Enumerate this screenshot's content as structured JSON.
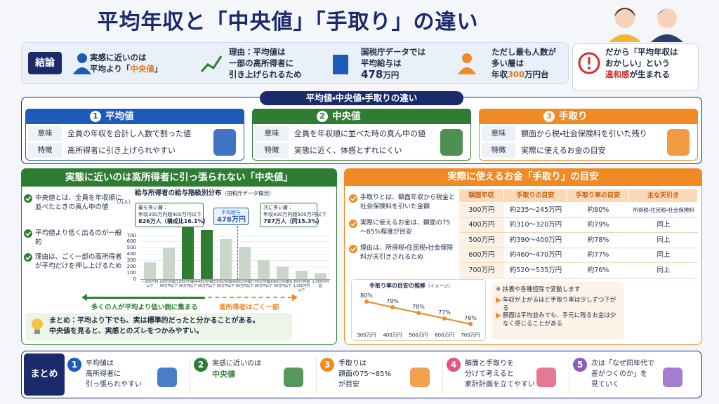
{
  "header": {
    "title": "平均年収と「中央値」「手取り」の違い"
  },
  "conclusion": {
    "label": "結論",
    "items": [
      {
        "lines": [
          [
            "実感に近いのは"
          ],
          [
            "平均より「",
            {
              "text": "中央値",
              "color": "#e8751a"
            },
            "」"
          ]
        ]
      },
      {
        "lines": [
          [
            "理由：平均値は"
          ],
          [
            "一部の高所得者に"
          ],
          [
            "引き上げられるため"
          ]
        ]
      },
      {
        "lines": [
          [
            "国税庁データでは"
          ],
          [
            "平均給与は"
          ],
          [
            {
              "text": "478",
              "color": "#1b2a6b"
            },
            "万円"
          ]
        ]
      },
      {
        "lines": [
          [
            "ただし最も人数が"
          ],
          [
            "多い層は"
          ],
          [
            "年収",
            {
              "text": "300",
              "color": "#e8751a"
            },
            "万円台"
          ]
        ]
      },
      {
        "lines": [
          [
            "だから「平均年収は"
          ],
          [
            "おかしい」という"
          ],
          [
            {
              "text": "違和感",
              "color": "#d32f2f"
            },
            "が生まれる"
          ]
        ]
      }
    ]
  },
  "differences": {
    "title": "平均値・中央値・手取りの違い",
    "cards": [
      {
        "num": "1",
        "name": "平均値",
        "color": "#1e5bb8",
        "rows": [
          [
            "意味",
            "全員の年収を合計し人数で割った値"
          ],
          [
            "特徴",
            "高所得者に引き上げられやすい"
          ]
        ]
      },
      {
        "num": "2",
        "name": "中央値",
        "color": "#2e7d32",
        "rows": [
          [
            "意味",
            "全員を年収順に並べた時の真ん中の値"
          ],
          [
            "特徴",
            "実態に近く、体感とずれにくい"
          ]
        ]
      },
      {
        "num": "3",
        "name": "手取り",
        "color": "#f08a24",
        "rows": [
          [
            "意味",
            "額面から税・社会保険料を引いた残り"
          ],
          [
            "特徴",
            "実際に使えるお金の目安"
          ]
        ]
      }
    ]
  },
  "median": {
    "title": "実態に近いのは高所得者に引っ張られない「中央値」",
    "points": [
      "中央値とは、全員を年収順に並べたときの真ん中の値",
      "平均値より低く出るのが一般的",
      "理由は、ごく一部の高所得者が平均だけを押し上げるため"
    ],
    "arrows": [
      {
        "text": "多くの人が平均より低い側に集まる",
        "color": "#2e7d32"
      },
      {
        "text": "高所得者はごく一部",
        "color": "#f08a24"
      }
    ],
    "note": [
      "まとめ：平均より下でも、実は標準的だったと分かることがある。",
      "中央値を見ると、実感とのズレをつかみやすい。"
    ]
  },
  "takehome": {
    "title": "実際に使えるお金「手取り」の目安",
    "points": [
      "手取りとは、額面年収から税金と社会保険料を引いた金額",
      "実際に使えるお金は、額面の75～85%程度が目安",
      "理由は、所得税・住民税・社会保険料が天引きされるため"
    ],
    "table": {
      "header": [
        "額面年収",
        "手取りの目安",
        "手取り率の目安",
        "主な天引き"
      ],
      "rows": [
        [
          "300万円",
          "約235～245万円",
          "約80%",
          "所得税・住民税・社会保険料"
        ],
        [
          "400万円",
          "約310～320万円",
          "約79%",
          "同上"
        ],
        [
          "500万円",
          "約390～400万円",
          "約78%",
          "同上"
        ],
        [
          "600万円",
          "約460～470万円",
          "約77%",
          "同上"
        ],
        [
          "700万円",
          "約520～535万円",
          "約76%",
          "同上"
        ]
      ]
    },
    "note_head": "※ 扶養や各種控除で変動します",
    "notes": [
      "年収が上がるほど手取り率は少しずつ下がる",
      "額面は平均並みでも、手元に残るお金は少なく感じることがある"
    ]
  },
  "summary": {
    "label": "まとめ",
    "items": [
      {
        "num": "1",
        "color": "#1e5bb8",
        "lines": [
          [
            "平均値は"
          ],
          [
            "高所得者に"
          ],
          [
            "引っ張られやすい"
          ]
        ]
      },
      {
        "num": "2",
        "color": "#2e7d32",
        "lines": [
          [
            "実感に近いのは"
          ],
          [
            {
              "text": "中央値",
              "color": "#2e7d32"
            }
          ]
        ]
      },
      {
        "num": "3",
        "color": "#f08a24",
        "lines": [
          [
            "手取りは"
          ],
          [
            "額面の75～85%"
          ],
          [
            "が目安"
          ]
        ]
      },
      {
        "num": "4",
        "color": "#e0567a",
        "lines": [
          [
            "額面と手取りを"
          ],
          [
            "分けて考えると"
          ],
          [
            "家計計画を立てやすい"
          ]
        ]
      },
      {
        "num": "5",
        "color": "#8e5bc4",
        "lines": [
          [
            "次は「なぜ同年代で"
          ],
          [
            "差がつくのか」を"
          ],
          [
            "見ていく"
          ]
        ]
      }
    ]
  },
  "chart_data": [
    {
      "type": "bar",
      "title": "給与所得者の給与階級別分布",
      "subtitle": "（国税庁データ概況）",
      "y_label": "（万人）",
      "categories": [
        "～200万円以下",
        "200万円超300万円以下",
        "300万円超400万円以下",
        "400万円超500万円以下",
        "500万円超600万円以下",
        "600万円超700万円以下",
        "700万円超800万円以下",
        "800万円超900万円以下",
        "900万円超1,000万円以下",
        "1,000万円超"
      ],
      "values": [
        270,
        500,
        826,
        787,
        640,
        520,
        300,
        200,
        130,
        90
      ],
      "colors": [
        "#c9d6c9",
        "#c9d6c9",
        "#2e7d32",
        "#2e7d32",
        "#c9d6c9",
        "#c9d6c9",
        "#c9d6c9",
        "#c9d6c9",
        "#c9d6c9",
        "#c9d6c9"
      ],
      "ylim": [
        0,
        1300
      ],
      "yticks": [
        0,
        100,
        200,
        300,
        400,
        500,
        600,
        700
      ],
      "grid": true,
      "annotations": [
        [
          "最も多い層：",
          "年収300万円超400万円以下",
          "826万人（構成比16.1%）"
        ],
        [
          "平均給与",
          "478万円"
        ],
        [
          "次に多い層：",
          "年収400万円超500万円以下",
          "787万人（同15.3%）"
        ]
      ]
    },
    {
      "type": "line",
      "title": "手取り率の目安の推移",
      "subtitle": "（イメージ）",
      "categories": [
        "300万円",
        "400万円",
        "500万円",
        "600万円",
        "700万円"
      ],
      "values": [
        80,
        79,
        78,
        77,
        76
      ],
      "value_labels": [
        "80%",
        "79%",
        "78%",
        "77%",
        "76%"
      ],
      "color": "#f08a24"
    }
  ]
}
